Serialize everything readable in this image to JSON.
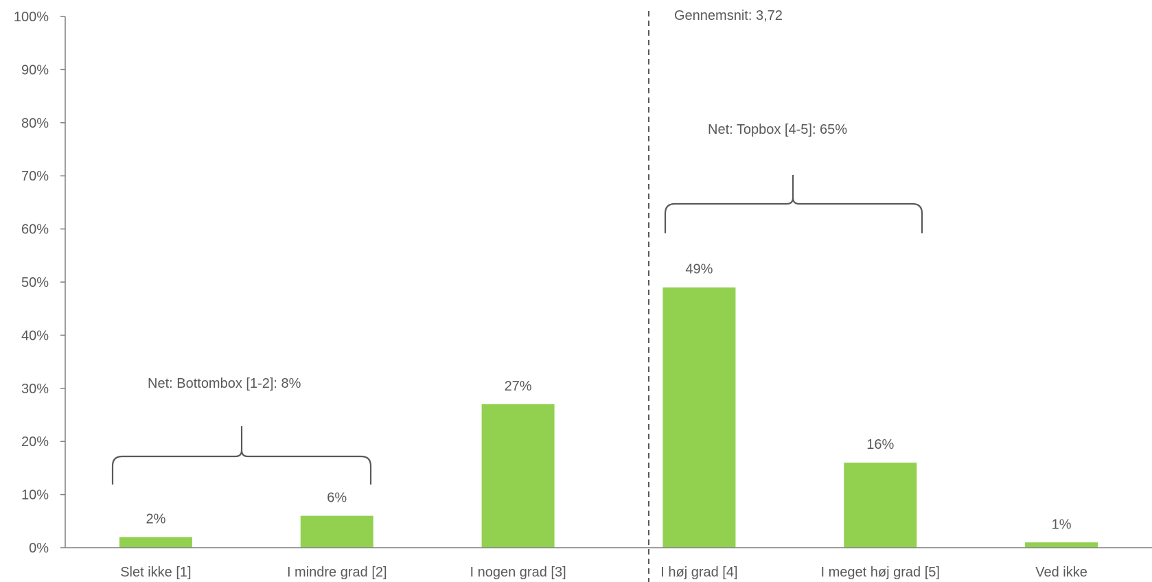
{
  "chart_data": {
    "type": "bar",
    "categories": [
      "Slet ikke [1]",
      "I mindre grad [2]",
      "I nogen grad [3]",
      "I høj grad [4]",
      "I meget høj grad [5]",
      "Ved ikke"
    ],
    "values": [
      2,
      6,
      27,
      49,
      16,
      1
    ],
    "data_labels": [
      "2%",
      "6%",
      "27%",
      "49%",
      "16%",
      "1%"
    ],
    "ylim": [
      0,
      100
    ],
    "yticks": [
      0,
      10,
      20,
      30,
      40,
      50,
      60,
      70,
      80,
      90,
      100
    ],
    "ytick_labels": [
      "0%",
      "10%",
      "20%",
      "30%",
      "40%",
      "50%",
      "60%",
      "70%",
      "80%",
      "90%",
      "100%"
    ],
    "bar_color": "#92d050",
    "grid": false,
    "legend": "none",
    "annotations": {
      "average": "Gennemsnit: 3,72",
      "bottombox": "Net: Bottombox [1-2]: 8%",
      "topbox": "Net: Topbox [4-5]: 65%"
    }
  }
}
